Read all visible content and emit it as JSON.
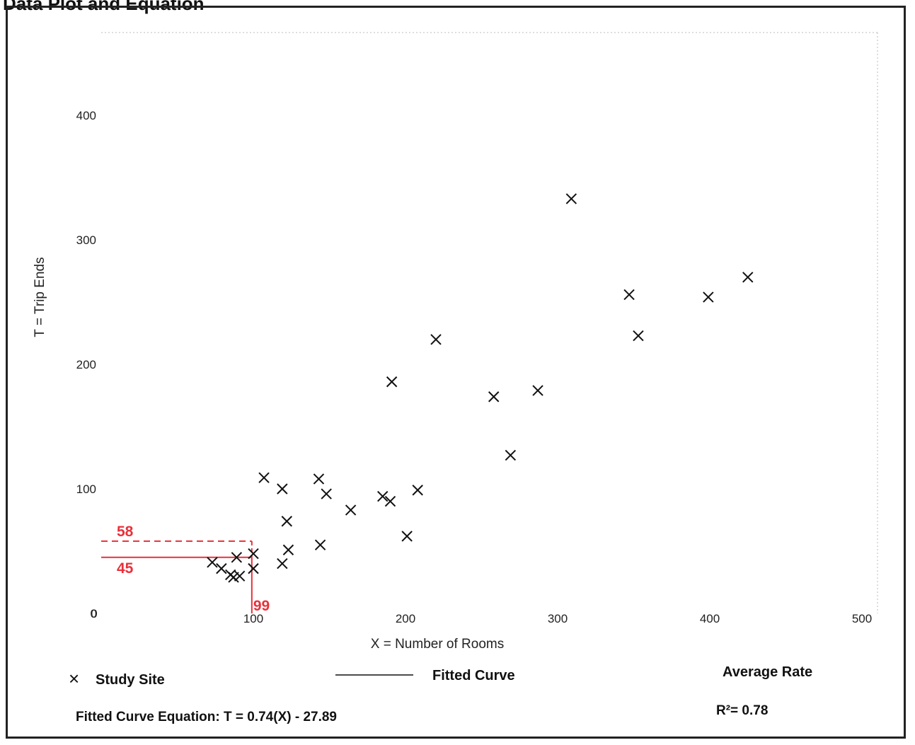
{
  "header": {
    "title": "Data Plot and Equation"
  },
  "chart_data": {
    "type": "scatter",
    "xlabel": "X = Number of Rooms",
    "ylabel": "T = Trip Ends",
    "xlim": [
      0,
      500
    ],
    "ylim": [
      0,
      400
    ],
    "x_ticks": [
      {
        "value": 0,
        "label": "0"
      },
      {
        "value": 100,
        "label": "100"
      },
      {
        "value": 200,
        "label": "200"
      },
      {
        "value": 300,
        "label": "300"
      },
      {
        "value": 400,
        "label": "400"
      },
      {
        "value": 500,
        "label": "500"
      }
    ],
    "y_ticks": [
      {
        "value": 0,
        "label": "0"
      },
      {
        "value": 100,
        "label": "100"
      },
      {
        "value": 200,
        "label": "200"
      },
      {
        "value": 300,
        "label": "300"
      },
      {
        "value": 400,
        "label": "400"
      }
    ],
    "grid": false,
    "series": [
      {
        "name": "Study Site",
        "marker": "x",
        "points": [
          {
            "x": 73,
            "y": 41
          },
          {
            "x": 79,
            "y": 36
          },
          {
            "x": 85,
            "y": 31
          },
          {
            "x": 87,
            "y": 29
          },
          {
            "x": 89,
            "y": 45
          },
          {
            "x": 91,
            "y": 30
          },
          {
            "x": 100,
            "y": 36
          },
          {
            "x": 100,
            "y": 48
          },
          {
            "x": 107,
            "y": 109
          },
          {
            "x": 119,
            "y": 100
          },
          {
            "x": 119,
            "y": 40
          },
          {
            "x": 122,
            "y": 74
          },
          {
            "x": 123,
            "y": 51
          },
          {
            "x": 143,
            "y": 108
          },
          {
            "x": 144,
            "y": 55
          },
          {
            "x": 148,
            "y": 96
          },
          {
            "x": 164,
            "y": 83
          },
          {
            "x": 185,
            "y": 94
          },
          {
            "x": 190,
            "y": 90
          },
          {
            "x": 191,
            "y": 186
          },
          {
            "x": 201,
            "y": 62
          },
          {
            "x": 208,
            "y": 99
          },
          {
            "x": 220,
            "y": 220
          },
          {
            "x": 258,
            "y": 174
          },
          {
            "x": 269,
            "y": 127
          },
          {
            "x": 287,
            "y": 179
          },
          {
            "x": 309,
            "y": 333
          },
          {
            "x": 347,
            "y": 256
          },
          {
            "x": 353,
            "y": 223
          },
          {
            "x": 399,
            "y": 254
          },
          {
            "x": 425,
            "y": 270
          }
        ]
      }
    ],
    "fitted_curve": {
      "label": "Fitted Curve",
      "equation": "Fitted Curve Equation: T = 0.74(X) - 27.89"
    },
    "average_rate": {
      "label": "Average Rate"
    },
    "r_squared": "R²= 0.78",
    "annotations": [
      {
        "label": "58",
        "value": 58,
        "style": "dashed",
        "color": "#e8313b"
      },
      {
        "label": "45",
        "value": 45,
        "style": "solid",
        "color": "#e8313b"
      },
      {
        "label": "99",
        "value": 99,
        "color": "#e8313b"
      }
    ]
  },
  "legend": {
    "study_site": "Study Site",
    "fitted_curve": "Fitted Curve",
    "average_rate": "Average Rate",
    "equation": "Fitted Curve Equation: T = 0.74(X) - 27.89",
    "r_squared": "R²= 0.78",
    "marker_glyph": "×"
  }
}
